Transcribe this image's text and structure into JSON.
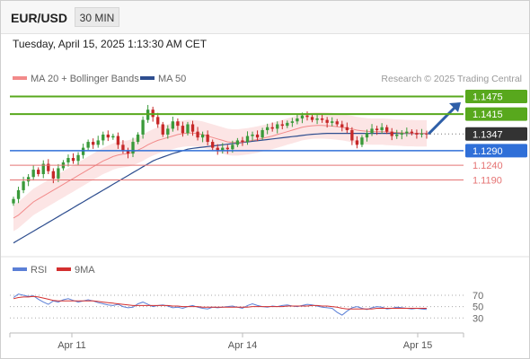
{
  "header": {
    "instrument": "EUR/USD",
    "timeframe": "30 MIN",
    "datetime": "Tuesday, April 15, 2025 1:13:30 AM CET"
  },
  "legend": {
    "ma20_label": "MA 20 + Bollinger Bands",
    "ma50_label": "MA 50",
    "credit": "Research © 2025 Trading Central"
  },
  "rsi_legend": {
    "rsi_label": "RSI",
    "ma9_label": "9MA"
  },
  "colors": {
    "up_candle": "#3a9a3a",
    "down_candle": "#c62828",
    "ma20": "#f28a8a",
    "bollinger_fill": "#fbdcdc",
    "ma50": "#2e4e8f",
    "resistance": "#58a81d",
    "pivot": "#2f6fd8",
    "support": "#e57373",
    "current_price_tag": "#333333",
    "rsi": "#5b7fd6",
    "rsi_ma": "#d32f2f",
    "arrow": "#2e5fa8"
  },
  "chart_data": [
    {
      "type": "candlestick",
      "yrange": [
        1.1,
        1.15
      ],
      "price_levels": [
        {
          "value": 1.1475,
          "label": "1.1475",
          "kind": "resistance"
        },
        {
          "value": 1.1415,
          "label": "1.1415",
          "kind": "resistance"
        },
        {
          "value": 1.1347,
          "label": "1.1347",
          "kind": "current"
        },
        {
          "value": 1.129,
          "label": "1.1290",
          "kind": "pivot"
        },
        {
          "value": 1.124,
          "label": "1.1240",
          "kind": "support"
        },
        {
          "value": 1.119,
          "label": "1.1190",
          "kind": "support"
        }
      ],
      "x_tick_labels": [
        "Apr 11",
        "Apr 14",
        "Apr 15"
      ],
      "close_series": [
        1.1125,
        1.1155,
        1.1185,
        1.12,
        1.1225,
        1.121,
        1.1245,
        1.122,
        1.1195,
        1.123,
        1.125,
        1.1265,
        1.1255,
        1.1275,
        1.13,
        1.132,
        1.131,
        1.1325,
        1.1345,
        1.1335,
        1.134,
        1.131,
        1.129,
        1.128,
        1.132,
        1.1345,
        1.1395,
        1.143,
        1.1405,
        1.138,
        1.1345,
        1.1365,
        1.139,
        1.1375,
        1.135,
        1.138,
        1.1355,
        1.1335,
        1.1345,
        1.132,
        1.13,
        1.129,
        1.13,
        1.1295,
        1.131,
        1.1325,
        1.132,
        1.134,
        1.1345,
        1.1335,
        1.136,
        1.137,
        1.1365,
        1.138,
        1.1375,
        1.1385,
        1.139,
        1.14,
        1.141,
        1.1405,
        1.1395,
        1.14,
        1.1395,
        1.1385,
        1.139,
        1.138,
        1.137,
        1.136,
        1.1325,
        1.131,
        1.1335,
        1.135,
        1.1365,
        1.136,
        1.137,
        1.1355,
        1.134,
        1.1345,
        1.135,
        1.1355,
        1.135,
        1.1345,
        1.1348,
        1.1347
      ],
      "ma20": [
        1.106,
        1.107,
        1.1085,
        1.11,
        1.1115,
        1.1125,
        1.1135,
        1.1145,
        1.1155,
        1.1165,
        1.1175,
        1.1185,
        1.1195,
        1.1205,
        1.1215,
        1.1225,
        1.1235,
        1.1245,
        1.1255,
        1.1262,
        1.127,
        1.1275,
        1.1278,
        1.128,
        1.1285,
        1.1292,
        1.13,
        1.131,
        1.1318,
        1.1325,
        1.133,
        1.1335,
        1.134,
        1.1345,
        1.1348,
        1.135,
        1.135,
        1.1348,
        1.1345,
        1.134,
        1.1335,
        1.133,
        1.1325,
        1.132,
        1.1318,
        1.1318,
        1.132,
        1.1322,
        1.1325,
        1.1328,
        1.1332,
        1.1336,
        1.134,
        1.1345,
        1.135,
        1.1355,
        1.136,
        1.1365,
        1.137,
        1.1373,
        1.1375,
        1.1376,
        1.1376,
        1.1375,
        1.1374,
        1.1372,
        1.137,
        1.1367,
        1.1364,
        1.136,
        1.1358,
        1.1356,
        1.1355,
        1.1355,
        1.1355,
        1.1354,
        1.1353,
        1.1352,
        1.1351,
        1.135,
        1.135,
        1.1349,
        1.1349,
        1.1349
      ],
      "ma50": [
        1.0975,
        1.0985,
        1.0995,
        1.1005,
        1.1015,
        1.1025,
        1.1035,
        1.1045,
        1.1055,
        1.1065,
        1.1075,
        1.1085,
        1.1095,
        1.1105,
        1.1115,
        1.1125,
        1.1135,
        1.1145,
        1.1155,
        1.1165,
        1.1175,
        1.1185,
        1.1195,
        1.1205,
        1.1215,
        1.1225,
        1.1235,
        1.1245,
        1.1255,
        1.1262,
        1.1268,
        1.1274,
        1.128,
        1.1285,
        1.129,
        1.1295,
        1.1298,
        1.13,
        1.1302,
        1.1304,
        1.1306,
        1.1308,
        1.131,
        1.1312,
        1.1314,
        1.1316,
        1.1318,
        1.132,
        1.1322,
        1.1324,
        1.1326,
        1.1328,
        1.133,
        1.1332,
        1.1334,
        1.1336,
        1.1338,
        1.134,
        1.1342,
        1.1344,
        1.1346,
        1.1347,
        1.1348,
        1.1349,
        1.1349,
        1.1349,
        1.1349,
        1.1349,
        1.1349,
        1.1349,
        1.1349,
        1.1349,
        1.1349,
        1.1349,
        1.1349,
        1.1349,
        1.1349,
        1.1349,
        1.1349,
        1.1349,
        1.1349,
        1.1349,
        1.1349,
        1.1349
      ],
      "bollinger_width": 0.0045,
      "forecast_arrow": {
        "from": 1.1347,
        "to": 1.1455
      }
    },
    {
      "type": "line",
      "name": "RSI",
      "y_ticks": [
        70,
        50,
        30
      ],
      "yrange": [
        0,
        100
      ],
      "rsi": [
        66,
        72,
        70,
        68,
        69,
        63,
        58,
        54,
        60,
        58,
        62,
        64,
        61,
        58,
        60,
        62,
        60,
        57,
        55,
        53,
        52,
        54,
        50,
        48,
        49,
        55,
        58,
        54,
        50,
        52,
        53,
        51,
        48,
        49,
        47,
        50,
        52,
        49,
        47,
        46,
        49,
        48,
        49,
        50,
        51,
        49,
        47,
        52,
        55,
        52,
        50,
        49,
        51,
        50,
        52,
        53,
        51,
        50,
        52,
        54,
        53,
        51,
        49,
        48,
        47,
        40,
        35,
        42,
        48,
        50,
        47,
        45,
        48,
        50,
        49,
        46,
        47,
        49,
        48,
        47,
        46,
        47,
        46,
        45
      ],
      "rsi_ma": [
        64,
        66,
        67,
        67,
        68,
        67,
        65,
        63,
        61,
        60,
        60,
        60,
        60,
        60,
        60,
        60,
        60,
        59,
        58,
        57,
        56,
        55,
        54,
        53,
        52,
        52,
        52,
        52,
        52,
        52,
        52,
        52,
        51,
        51,
        50,
        50,
        50,
        50,
        49,
        49,
        49,
        49,
        49,
        49,
        49,
        49,
        49,
        49,
        50,
        50,
        50,
        50,
        50,
        50,
        50,
        51,
        51,
        51,
        51,
        51,
        52,
        52,
        51,
        51,
        50,
        49,
        47,
        46,
        46,
        46,
        46,
        46,
        46,
        47,
        47,
        47,
        47,
        47,
        47,
        47,
        47,
        47,
        47,
        47
      ]
    }
  ]
}
